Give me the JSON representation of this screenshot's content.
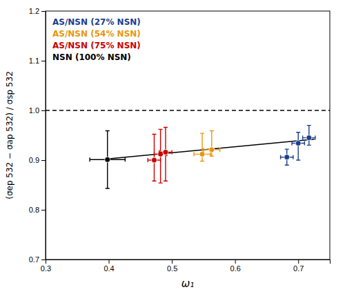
{
  "chart_data": {
    "type": "scatter",
    "xlabel": "ω₁",
    "ylabel": "(σep 532 − σap 532) / σsp 532",
    "xlim": [
      0.3,
      0.75
    ],
    "ylim": [
      0.7,
      1.2
    ],
    "xticks": [
      0.3,
      0.4,
      0.5,
      0.6,
      0.7
    ],
    "yticks": [
      0.7,
      0.8,
      0.9,
      {
        "value": 1.0,
        "label": "1.0"
      },
      1.1,
      1.2
    ],
    "grid": false,
    "legend": "upper left",
    "marker": "circle",
    "reference_lines": [
      {
        "y": 1.0,
        "color": "#000000",
        "line_style": "dashed"
      }
    ],
    "trend_line": {
      "x": [
        0.395,
        0.725
      ],
      "values": [
        0.902,
        0.942
      ],
      "color": "#000000",
      "line_style": "solid"
    },
    "series": [
      {
        "name": "AS/NSN (27% NSN)",
        "color": "#1a3e8f",
        "x": [
          0.682,
          0.7,
          0.717
        ],
        "values": [
          0.906,
          0.934,
          0.945
        ],
        "xerr": [
          0.01,
          0.01,
          0.01
        ],
        "yerr_lo": [
          0.016,
          0.034,
          0.015
        ],
        "yerr_hi": [
          0.016,
          0.022,
          0.025
        ]
      },
      {
        "name": "AS/NSN (54% NSN)",
        "color": "#E8960C",
        "x": [
          0.548,
          0.563
        ],
        "values": [
          0.912,
          0.921
        ],
        "xerr": [
          0.013,
          0.013
        ],
        "yerr_lo": [
          0.014,
          0.013
        ],
        "yerr_hi": [
          0.042,
          0.038
        ]
      },
      {
        "name": "AS/NSN (75% NSN)",
        "color": "#CC0000",
        "x": [
          0.472,
          0.482,
          0.49
        ],
        "values": [
          0.9,
          0.912,
          0.916
        ],
        "xerr": [
          0.01,
          0.01,
          0.01
        ],
        "yerr_lo": [
          0.042,
          0.058,
          0.058
        ],
        "yerr_hi": [
          0.052,
          0.05,
          0.05
        ]
      },
      {
        "name": "NSN (100% NSN)",
        "color": "#000000",
        "x": [
          0.398
        ],
        "values": [
          0.901
        ],
        "xerr": [
          0.028
        ],
        "yerr_lo": [
          0.058
        ],
        "yerr_hi": [
          0.058
        ]
      }
    ]
  }
}
